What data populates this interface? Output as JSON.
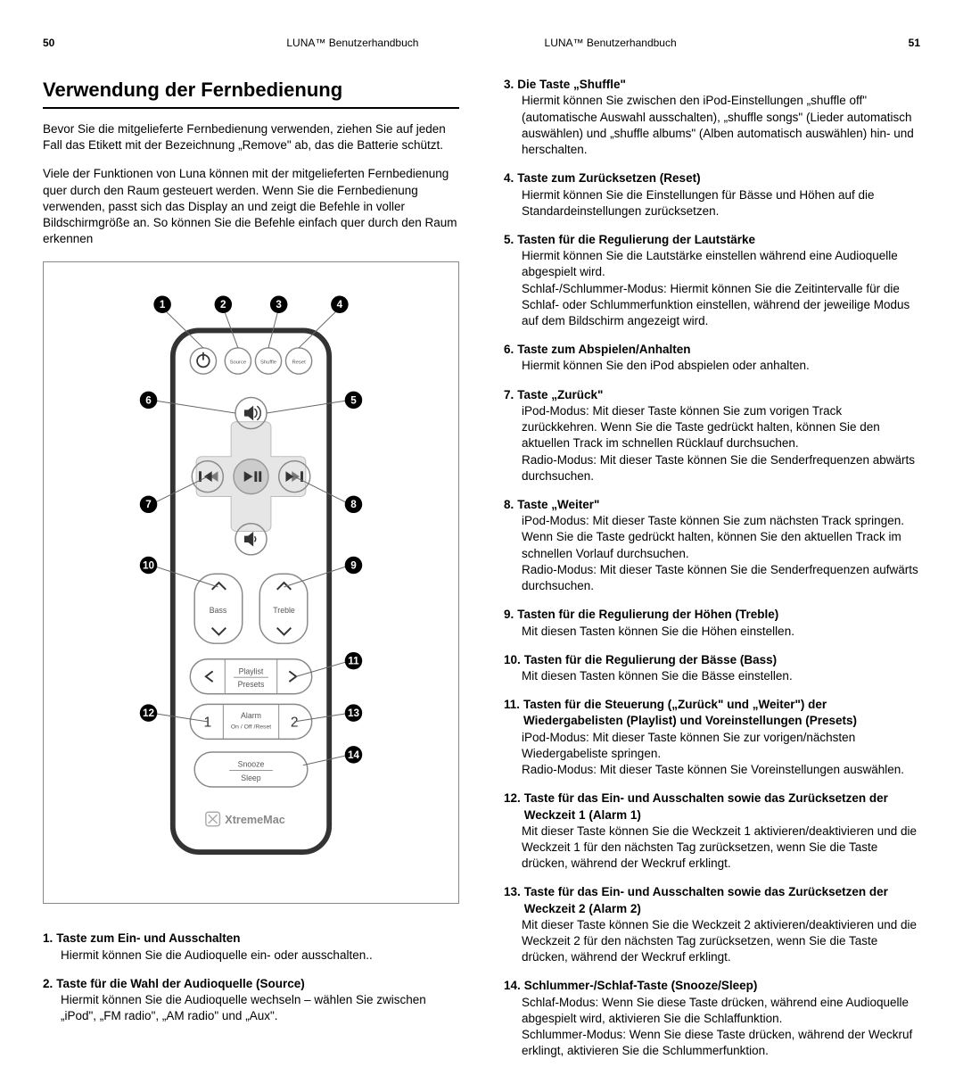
{
  "header": {
    "left_page": "50",
    "right_page": "51",
    "title": "LUNA™ Benutzerhandbuch"
  },
  "left": {
    "heading": "Verwendung der Fernbedienung",
    "p1": "Bevor Sie die mitgelieferte Fernbedienung verwenden, ziehen Sie auf jeden Fall das Etikett mit der Bezeichnung „Remove\" ab, das die Batterie schützt.",
    "p2": "Viele der Funktionen von Luna können mit der mitgelieferten Fernbedienung quer durch den Raum gesteuert werden. Wenn Sie die Fernbedienung verwenden, passt sich das Display an und zeigt die Befehle in voller Bildschirmgröße an. So können Sie die Befehle einfach quer durch den Raum erkennen"
  },
  "remote": {
    "top_labels": [
      "Source",
      "Shuffle",
      "Reset"
    ],
    "bass_label": "Bass",
    "treble_label": "Treble",
    "playlist_label1": "Playlist",
    "playlist_label2": "Presets",
    "alarm_label1": "Alarm",
    "alarm_label2": "On / Off /Reset",
    "snooze1": "Snooze",
    "snooze2": "Sleep",
    "brand": "XtremeMac",
    "callouts": [
      "1",
      "2",
      "3",
      "4",
      "5",
      "6",
      "7",
      "8",
      "9",
      "10",
      "11",
      "12",
      "13",
      "14"
    ]
  },
  "items": [
    {
      "n": "1.",
      "title": "Taste zum Ein- und Ausschalten",
      "desc": "Hiermit können Sie die Audioquelle ein- oder ausschalten.."
    },
    {
      "n": "2.",
      "title": "Taste für die Wahl der Audioquelle (Source)",
      "desc": "Hiermit können Sie die Audioquelle wechseln – wählen Sie zwischen „iPod\", „FM radio\", „AM radio\" und „Aux\"."
    },
    {
      "n": "3.",
      "title": "Die Taste „Shuffle\"",
      "desc": "Hiermit können Sie zwischen den iPod-Einstellungen „shuffle off\" (automatische Auswahl ausschalten), „shuffle songs\" (Lieder automatisch auswählen) und „shuffle albums\" (Alben automatisch auswählen) hin- und herschalten."
    },
    {
      "n": "4.",
      "title": "Taste zum Zurücksetzen (Reset)",
      "desc": "Hiermit können Sie die Einstellungen für Bässe und Höhen auf die Standardeinstellungen zurücksetzen."
    },
    {
      "n": "5.",
      "title": "Tasten für die Regulierung der Lautstärke",
      "desc": "Hiermit können Sie die Lautstärke einstellen während eine Audioquelle abgespielt wird.",
      "extra": "Schlaf-/Schlummer-Modus: Hiermit können Sie die Zeitintervalle für die Schlaf- oder Schlummerfunktion einstellen, während der jeweilige Modus auf dem Bildschirm angezeigt wird."
    },
    {
      "n": "6.",
      "title": "Taste zum Abspielen/Anhalten",
      "desc": "Hiermit können Sie den iPod abspielen oder anhalten."
    },
    {
      "n": "7.",
      "title": "Taste „Zurück\"",
      "desc": "iPod-Modus: Mit dieser Taste können Sie zum vorigen Track zurückkehren. Wenn Sie die Taste gedrückt halten, können Sie den aktuellen Track im schnellen Rücklauf durchsuchen.",
      "extra": "Radio-Modus: Mit dieser Taste können Sie die Senderfrequenzen abwärts durchsuchen."
    },
    {
      "n": "8.",
      "title": "Taste „Weiter\"",
      "desc": "iPod-Modus: Mit dieser Taste können Sie zum nächsten Track springen. Wenn Sie die Taste gedrückt halten, können Sie den aktuellen Track im schnellen Vorlauf durchsuchen.",
      "extra": "Radio-Modus: Mit dieser Taste können Sie die Senderfrequenzen aufwärts durchsuchen."
    },
    {
      "n": "9.",
      "title": "Tasten für die Regulierung der Höhen (Treble)",
      "desc": "Mit diesen Tasten können Sie die Höhen einstellen."
    },
    {
      "n": "10.",
      "title": "Tasten für die Regulierung der Bässe (Bass)",
      "desc": "Mit diesen Tasten können Sie die Bässe einstellen."
    },
    {
      "n": "11.",
      "title": "Tasten für die Steuerung („Zurück\" und „Weiter\") der Wiedergabelisten (Playlist) und Voreinstellungen (Presets)",
      "desc": "iPod-Modus: Mit dieser Taste können Sie zur vorigen/nächsten Wiedergabeliste springen.",
      "extra": "Radio-Modus: Mit dieser Taste können Sie Voreinstellungen auswählen."
    },
    {
      "n": "12.",
      "title": "Taste für das Ein- und Ausschalten sowie das Zurücksetzen der Weckzeit 1 (Alarm 1)",
      "desc": "Mit dieser Taste können Sie die Weckzeit 1 aktivieren/deaktivieren und die Weckzeit 1 für den nächsten Tag zurücksetzen, wenn Sie die Taste drücken, während der Weckruf erklingt."
    },
    {
      "n": "13.",
      "title": "Taste für das Ein- und Ausschalten sowie das Zurücksetzen der Weckzeit 2 (Alarm 2)",
      "desc": "Mit dieser Taste können Sie die Weckzeit 2 aktivieren/deaktivieren und die Weckzeit 2 für den nächsten Tag zurücksetzen, wenn Sie die Taste drücken, während der Weckruf erklingt."
    },
    {
      "n": "14.",
      "title": "Schlummer-/Schlaf-Taste (Snooze/Sleep)",
      "desc": "Schlaf-Modus: Wenn Sie diese Taste drücken, während eine Audioquelle abgespielt wird, aktivieren Sie die Schlaffunktion.",
      "extra": "Schlummer-Modus: Wenn Sie diese Taste drücken, während der Weckruf erklingt, aktivieren Sie die Schlummerfunktion."
    }
  ],
  "layout": {
    "left_items": [
      0,
      1
    ],
    "right_items": [
      2,
      3,
      4,
      5,
      6,
      7,
      8,
      9,
      10,
      11,
      12,
      13
    ]
  },
  "style": {
    "callout_fill": "#000",
    "callout_text": "#fff",
    "remote_stroke": "#333",
    "remote_stroke_w": 6,
    "btn_stroke": "#888",
    "btn_stroke_w": 1.5
  }
}
